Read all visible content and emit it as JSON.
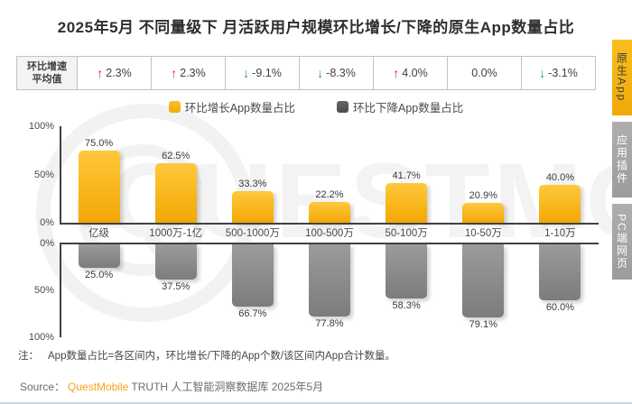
{
  "title": "2025年5月 不同量级下 月活跃用户规模环比增长/下降的原生App数量占比",
  "avg_row": {
    "label_line1": "环比增速",
    "label_line2": "平均值",
    "cells": [
      {
        "dir": "up",
        "value": "2.3%"
      },
      {
        "dir": "up",
        "value": "2.3%"
      },
      {
        "dir": "down",
        "value": "-9.1%"
      },
      {
        "dir": "down",
        "value": "-8.3%"
      },
      {
        "dir": "up",
        "value": "4.0%"
      },
      {
        "dir": "none",
        "value": "0.0%"
      },
      {
        "dir": "down",
        "value": "-3.1%"
      }
    ]
  },
  "legend": [
    {
      "label": "环比增长App数量占比",
      "color": "#fbb616"
    },
    {
      "label": "环比下降App数量占比",
      "color": "#575757"
    }
  ],
  "chart_data": {
    "type": "bar",
    "title": "2025年5月 不同量级下 月活跃用户规模环比增长/下降的原生App数量占比",
    "categories": [
      "亿级",
      "1000万-1亿",
      "500-1000万",
      "100-500万",
      "50-100万",
      "10-50万",
      "1-10万"
    ],
    "series": [
      {
        "name": "环比增长App数量占比",
        "color": "#fbb616",
        "values": [
          75.0,
          62.5,
          33.3,
          22.2,
          41.7,
          20.9,
          40.0
        ]
      },
      {
        "name": "环比下降App数量占比",
        "color": "#8c8c8c",
        "values": [
          25.0,
          37.5,
          66.7,
          77.8,
          58.3,
          79.1,
          60.0
        ]
      }
    ],
    "avg_growth_rate_row": {
      "label": "环比增速平均值",
      "values": [
        "2.3%",
        "2.3%",
        "-9.1%",
        "-8.3%",
        "4.0%",
        "0.0%",
        "-3.1%"
      ]
    },
    "ylim": [
      0,
      100
    ],
    "y_axis_top": [
      "100%",
      "50%",
      "0%"
    ],
    "y_axis_bottom": [
      "0%",
      "50%",
      "100%"
    ],
    "grid": false,
    "legend_position": "top",
    "orientation": "diverging-vertical"
  },
  "side_tabs": [
    {
      "label": "原生App",
      "active": true
    },
    {
      "label": "应用插件",
      "active": false
    },
    {
      "label": "PC端网页",
      "active": false
    }
  ],
  "note": {
    "prefix": "注：",
    "text": "App数量占比=各区间内，环比增长/下降的App个数/该区间内App合计数量。"
  },
  "source": {
    "prefix": "Source：",
    "brand": "QuestMobile",
    "rest": "TRUTH 人工智能洞察数据库 2025年5月"
  },
  "watermark": "QUESTMOBILE",
  "colors": {
    "bar_up_top": "#ffc83c",
    "bar_up_bottom": "#f2a702",
    "bar_down_top": "#9b9b9b",
    "bar_down_bottom": "#7c7c7c",
    "arrow_up": "#e8232a",
    "arrow_down": "#1fa639",
    "accent_yellow": "#f7b916",
    "tab_gray": "#a5a5a5",
    "axis": "#404040"
  }
}
